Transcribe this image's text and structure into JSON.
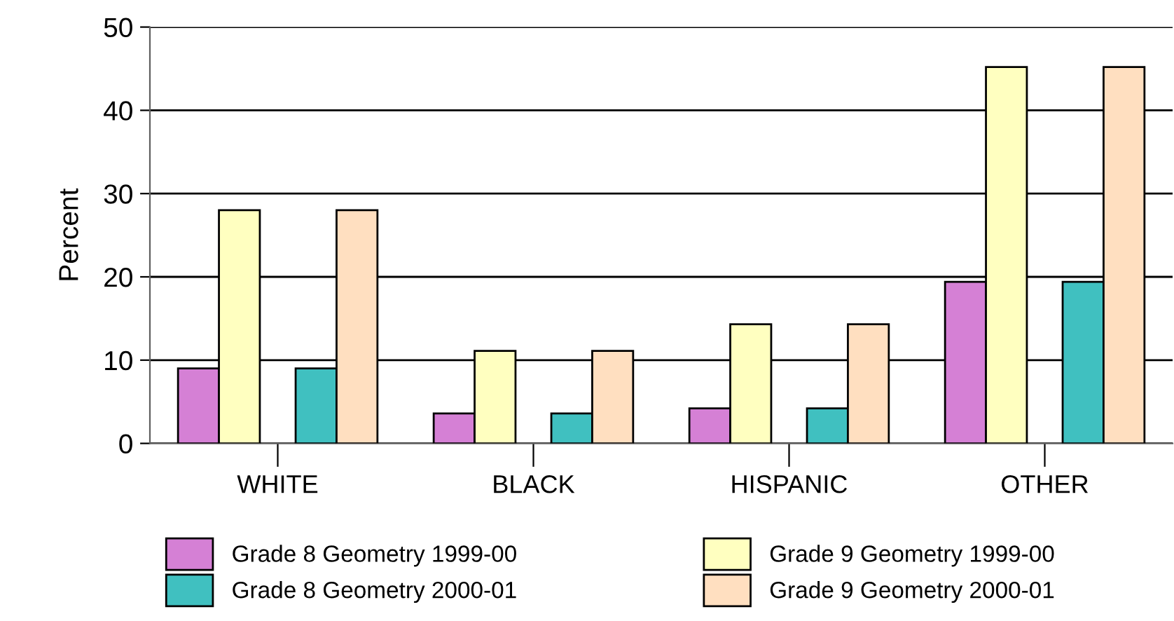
{
  "chart_data": {
    "type": "bar",
    "ylabel": "Percent",
    "categories": [
      "WHITE",
      "BLACK",
      "HISPANIC",
      "OTHER"
    ],
    "series": [
      {
        "name": "Grade 8 Geometry 1999-00",
        "color": "#d580d5",
        "values": [
          9.0,
          3.6,
          4.2,
          19.4
        ]
      },
      {
        "name": "Grade 9 Geometry 1999-00",
        "color": "#ffffc0",
        "values": [
          28,
          11.1,
          14.3,
          45.2
        ]
      },
      {
        "name": "Grade 8 Geometry 2000-01",
        "color": "#40c0c0",
        "values": [
          9.0,
          3.6,
          4.2,
          19.4
        ]
      },
      {
        "name": "Grade 9 Geometry 2000-01",
        "color": "#ffdfc0",
        "values": [
          28,
          11.1,
          14.3,
          45.2
        ]
      }
    ],
    "ylim": [
      0,
      50
    ],
    "yticks": [
      0,
      10,
      20,
      30,
      40,
      50
    ],
    "grid": "y",
    "legend": "bottom"
  }
}
